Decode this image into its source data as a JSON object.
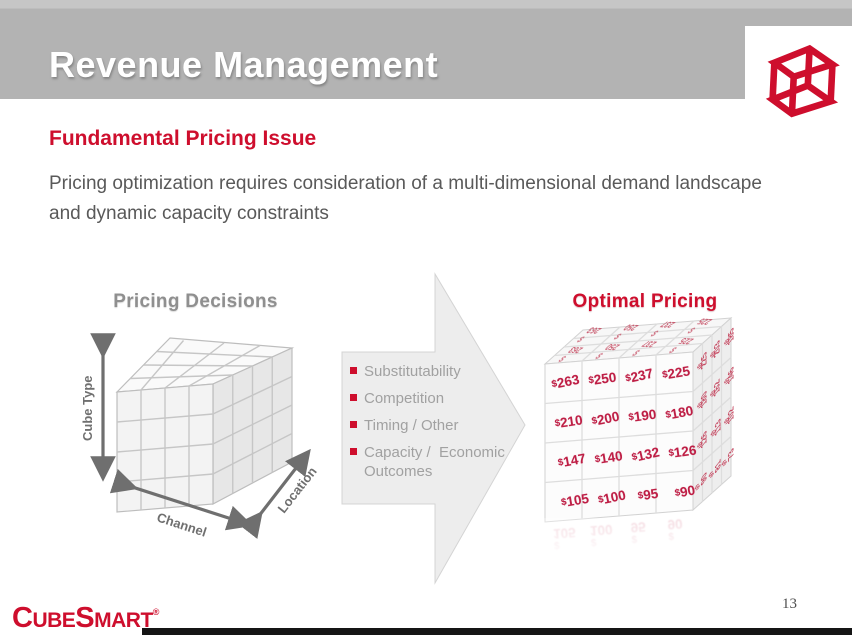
{
  "header": {
    "title": "Revenue Management"
  },
  "heading": {
    "text": "Fundamental Pricing Issue"
  },
  "body": {
    "text": "Pricing optimization requires consideration of a multi-dimensional demand landscape and dynamic capacity constraints"
  },
  "pricing_decisions": {
    "title": "Pricing Decisions",
    "axis_y": "Cube Type",
    "axis_x": "Channel",
    "axis_z": "Location"
  },
  "arrow": {
    "items": [
      "Substitutability",
      "Competition",
      "Timing / Other",
      "Capacity /  Economic Outcomes"
    ]
  },
  "optimal_pricing": {
    "title": "Optimal Pricing",
    "front_prices": [
      [
        "$263",
        "$250",
        "$237",
        "$225"
      ],
      [
        "$210",
        "$200",
        "$190",
        "$180"
      ],
      [
        "$147",
        "$140",
        "$132",
        "$126"
      ],
      [
        "$105",
        "$100",
        "$95",
        "$90"
      ]
    ],
    "side_prices": [
      [
        "$225",
        "$203",
        "$185"
      ],
      [
        "$180",
        "$162",
        "$146"
      ],
      [
        "$126",
        "$113",
        "$102"
      ],
      [
        "$90",
        "$81",
        "$73"
      ]
    ],
    "top_prices": [
      [
        "$263",
        "$250",
        "$237",
        "$225"
      ],
      [
        "$263",
        "$250",
        "$237",
        "$225"
      ]
    ]
  },
  "footer": {
    "logo": {
      "c": "C",
      "ube": "UBE",
      "s": "S",
      "mart": "MART",
      "reg": "®"
    },
    "page_number": "13"
  },
  "colors": {
    "accent_red": "#CE0E2D",
    "header_gray": "#B3B3B3",
    "text_gray": "#595959",
    "muted_gray": "#A1A1A1"
  }
}
